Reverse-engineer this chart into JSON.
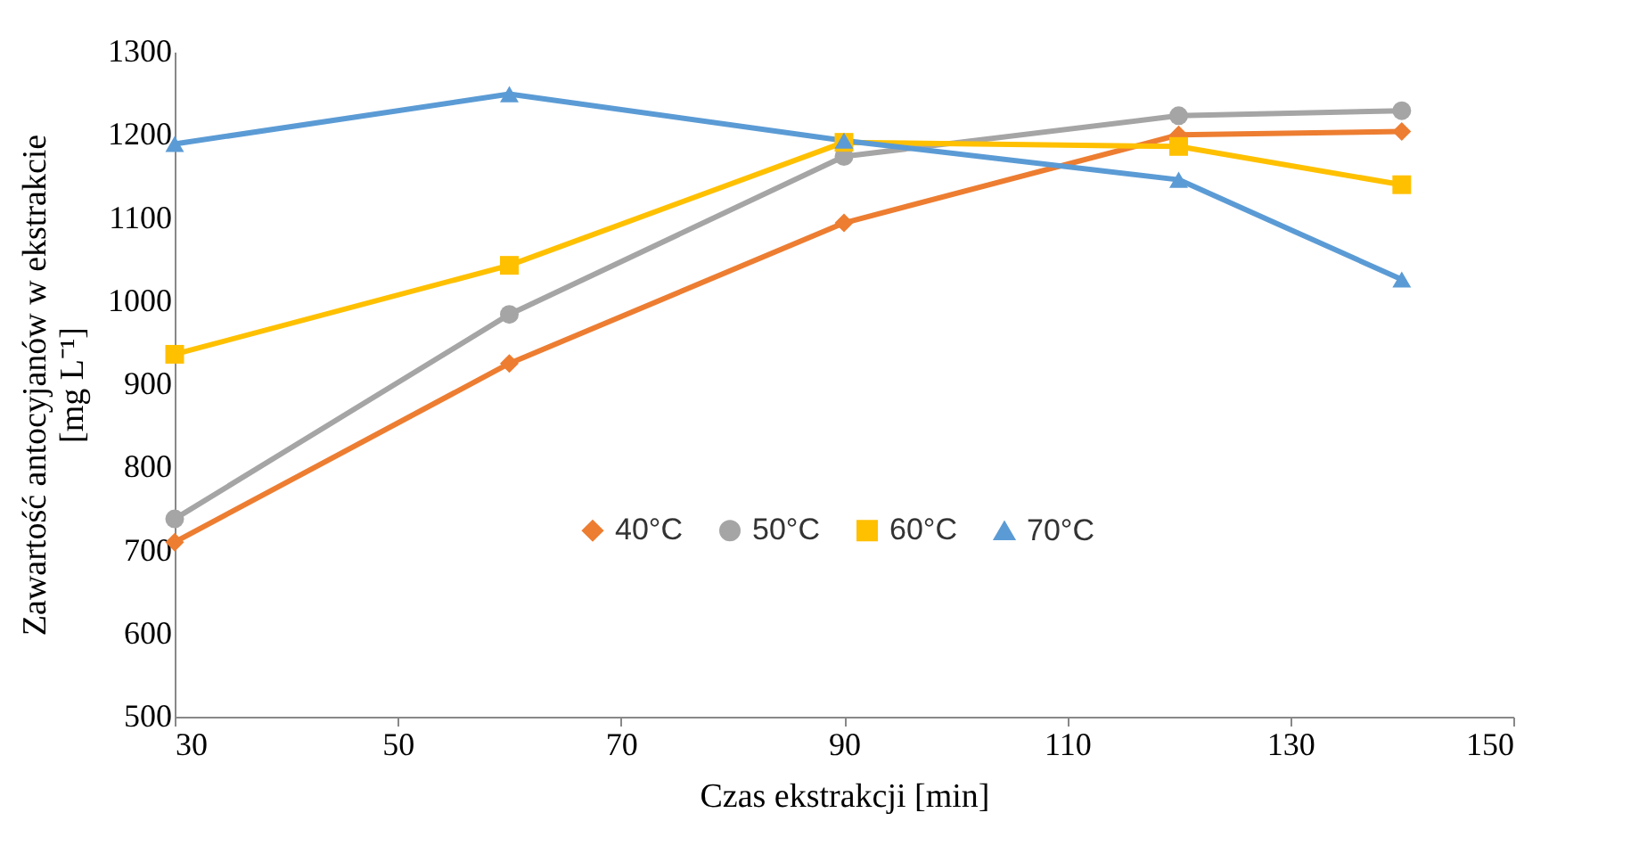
{
  "chart_data": {
    "type": "line",
    "xlabel": "Czas ekstrakcji [min]",
    "ylabel": "Zawartość antocyjanów w ekstrakcie\n[mg L⁻¹]",
    "x": [
      30,
      60,
      90,
      120,
      140
    ],
    "series": [
      {
        "name": "40°C",
        "color": "#ed7d31",
        "marker": "diamond",
        "values": [
          710,
          925,
          1094,
          1200,
          1204
        ]
      },
      {
        "name": "50°C",
        "color": "#a5a5a5",
        "marker": "circle",
        "values": [
          738,
          984,
          1174,
          1223,
          1229
        ]
      },
      {
        "name": "60°C",
        "color": "#ffc000",
        "marker": "square",
        "values": [
          936,
          1043,
          1191,
          1186,
          1140
        ]
      },
      {
        "name": "70°C",
        "color": "#5b9bd5",
        "marker": "triangle",
        "values": [
          1189,
          1249,
          1193,
          1146,
          1026
        ]
      }
    ],
    "xlim": [
      30,
      150
    ],
    "xticks": [
      30,
      50,
      70,
      90,
      110,
      130,
      150
    ],
    "ylim": [
      500,
      1300
    ],
    "yticks": [
      500,
      600,
      700,
      800,
      900,
      1000,
      1100,
      1200,
      1300
    ],
    "grid": false,
    "legend": "right",
    "line_style": "solid"
  }
}
